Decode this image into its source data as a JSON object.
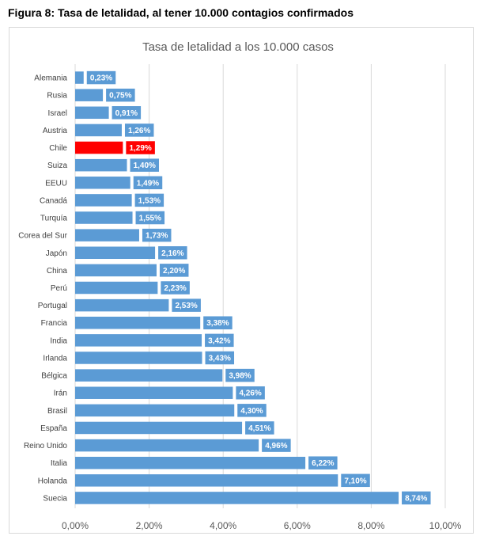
{
  "figure": {
    "title": "Figura 8: Tasa de letalidad, al tener 10.000 contagios confirmados"
  },
  "chart_data": {
    "type": "bar",
    "orientation": "horizontal",
    "title": "Tasa de letalidad a los 10.000 casos",
    "xlabel": "",
    "ylabel": "",
    "xlim": [
      0,
      10
    ],
    "x_ticks": [
      0,
      2,
      4,
      6,
      8,
      10
    ],
    "x_tick_labels": [
      "0,00%",
      "2,00%",
      "4,00%",
      "6,00%",
      "8,00%",
      "10,00%"
    ],
    "grid": "vertical",
    "categories": [
      "Alemania",
      "Rusia",
      "Israel",
      "Austria",
      "Chile",
      "Suiza",
      "EEUU",
      "Canadá",
      "Turquía",
      "Corea del Sur",
      "Japón",
      "China",
      "Perú",
      "Portugal",
      "Francia",
      "India",
      "Irlanda",
      "Bélgica",
      "Irán",
      "Brasil",
      "España",
      "Reino Unido",
      "Italia",
      "Holanda",
      "Suecia"
    ],
    "values": [
      0.23,
      0.75,
      0.91,
      1.26,
      1.29,
      1.4,
      1.49,
      1.53,
      1.55,
      1.73,
      2.16,
      2.2,
      2.23,
      2.53,
      3.38,
      3.42,
      3.43,
      3.98,
      4.26,
      4.3,
      4.51,
      4.96,
      6.22,
      7.1,
      8.74
    ],
    "data_labels": [
      "0,23%",
      "0,75%",
      "0,91%",
      "1,26%",
      "1,29%",
      "1,40%",
      "1,49%",
      "1,53%",
      "1,55%",
      "1,73%",
      "2,16%",
      "2,20%",
      "2,23%",
      "2,53%",
      "3,38%",
      "3,42%",
      "3,43%",
      "3,98%",
      "4,26%",
      "4,30%",
      "4,51%",
      "4,96%",
      "6,22%",
      "7,10%",
      "8,74%"
    ],
    "highlight_category": "Chile",
    "colors": {
      "bar": "#5b9bd5",
      "highlight": "#ff0000",
      "grid": "#d9d9d9",
      "text": "#404040",
      "label_text": "#ffffff"
    }
  }
}
